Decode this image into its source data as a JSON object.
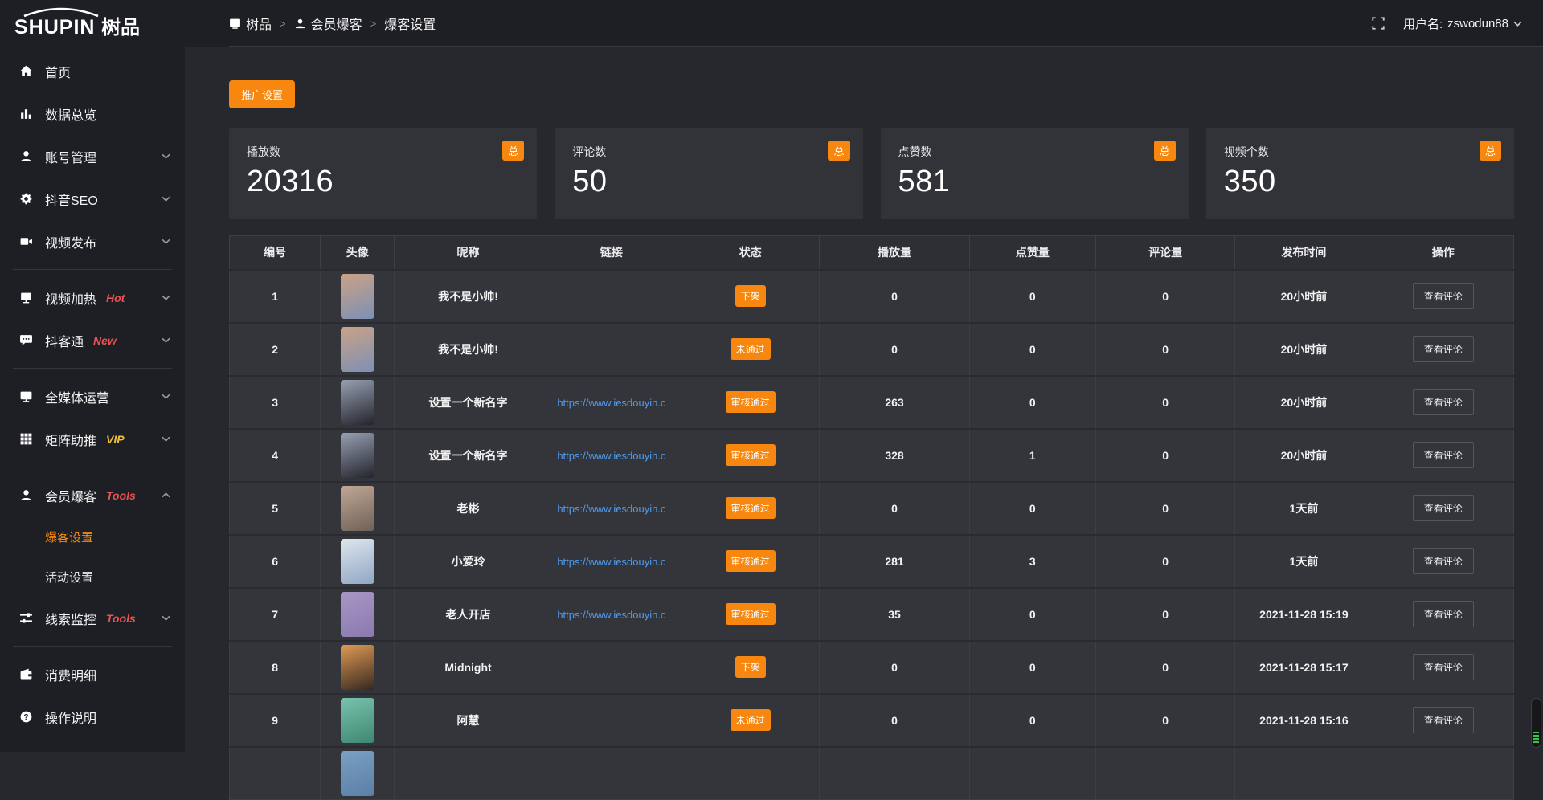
{
  "logo": {
    "brand": "SHUPIN",
    "brand_cn": "树品"
  },
  "topbar": {
    "breadcrumb": [
      {
        "key": "shupin",
        "icon": "screen",
        "label": "树品"
      },
      {
        "key": "member-baoke",
        "icon": "person",
        "label": "会员爆客"
      },
      {
        "key": "baoke-settings",
        "icon": "",
        "label": "爆客设置"
      }
    ],
    "separator": ">",
    "username_label": "用户名:",
    "username": "zswodun88"
  },
  "sidebar": {
    "items": [
      {
        "key": "home",
        "icon": "home",
        "label": "首页"
      },
      {
        "key": "data-overview",
        "icon": "bar-chart",
        "label": "数据总览"
      },
      {
        "key": "account-management",
        "icon": "user",
        "label": "账号管理",
        "chevron": "down"
      },
      {
        "key": "douyin-seo",
        "icon": "gear",
        "label": "抖音SEO",
        "chevron": "down"
      },
      {
        "key": "video-publish",
        "icon": "video",
        "label": "视频发布",
        "chevron": "down",
        "divider_after": true
      },
      {
        "key": "video-heating",
        "icon": "display",
        "label": "视频加热",
        "badge": "Hot",
        "badge_color": "#e85252",
        "chevron": "down"
      },
      {
        "key": "doukotong",
        "icon": "chat",
        "label": "抖客通",
        "badge": "New",
        "badge_color": "#e85252",
        "chevron": "down",
        "divider_after": true
      },
      {
        "key": "all-media-operation",
        "icon": "monitor",
        "label": "全媒体运营",
        "chevron": "down"
      },
      {
        "key": "matrix-boost",
        "icon": "grid",
        "label": "矩阵助推",
        "badge": "VIP",
        "badge_color": "#f2c037",
        "chevron": "down",
        "divider_after": true
      },
      {
        "key": "member-baoke",
        "icon": "person",
        "label": "会员爆客",
        "badge": "Tools",
        "badge_color": "#e85252",
        "chevron": "up",
        "children": [
          {
            "key": "baoke-settings",
            "label": "爆客设置",
            "active": true
          },
          {
            "key": "activity-settings",
            "label": "活动设置"
          }
        ]
      },
      {
        "key": "clue-monitor",
        "icon": "sliders",
        "label": "线索监控",
        "badge": "Tools",
        "badge_color": "#e85252",
        "chevron": "down",
        "divider_after": true
      },
      {
        "key": "consume-detail",
        "icon": "wallet",
        "label": "消费明细"
      },
      {
        "key": "operation-guide",
        "icon": "question",
        "label": "操作说明"
      }
    ]
  },
  "main": {
    "promo_button": "推广设置",
    "stats": [
      {
        "label": "播放数",
        "value": "20316",
        "badge": "总"
      },
      {
        "label": "评论数",
        "value": "50",
        "badge": "总"
      },
      {
        "label": "点赞数",
        "value": "581",
        "badge": "总"
      },
      {
        "label": "视频个数",
        "value": "350",
        "badge": "总"
      }
    ],
    "table": {
      "headers": [
        "编号",
        "头像",
        "昵称",
        "链接",
        "状态",
        "播放量",
        "点赞量",
        "评论量",
        "发布时间",
        "操作"
      ],
      "rows": [
        {
          "id": "1",
          "avatar_colors": [
            "#caa287",
            "#7d90b4"
          ],
          "nickname": "我不是小帅!",
          "link": "",
          "status": "下架",
          "plays": "0",
          "likes": "0",
          "comments": "0",
          "time": "20小时前",
          "action": "查看评论"
        },
        {
          "id": "2",
          "avatar_colors": [
            "#caa287",
            "#7d90b4"
          ],
          "nickname": "我不是小帅!",
          "link": "",
          "status": "未通过",
          "plays": "0",
          "likes": "0",
          "comments": "0",
          "time": "20小时前",
          "action": "查看评论"
        },
        {
          "id": "3",
          "avatar_colors": [
            "#97a0b2",
            "#23242c"
          ],
          "nickname": "设置一个新名字",
          "link": "https://www.iesdouyin.c",
          "status": "审核通过",
          "plays": "263",
          "likes": "0",
          "comments": "0",
          "time": "20小时前",
          "action": "查看评论"
        },
        {
          "id": "4",
          "avatar_colors": [
            "#97a0b2",
            "#23242c"
          ],
          "nickname": "设置一个新名字",
          "link": "https://www.iesdouyin.c",
          "status": "审核通过",
          "plays": "328",
          "likes": "1",
          "comments": "0",
          "time": "20小时前",
          "action": "查看评论"
        },
        {
          "id": "5",
          "avatar_colors": [
            "#c0a795",
            "#6f6158"
          ],
          "nickname": "老彬",
          "link": "https://www.iesdouyin.c",
          "status": "审核通过",
          "plays": "0",
          "likes": "0",
          "comments": "0",
          "time": "1天前",
          "action": "查看评论"
        },
        {
          "id": "6",
          "avatar_colors": [
            "#dde6ee",
            "#8fa6c2"
          ],
          "nickname": "小爱玲",
          "link": "https://www.iesdouyin.c",
          "status": "审核通过",
          "plays": "281",
          "likes": "3",
          "comments": "0",
          "time": "1天前",
          "action": "查看评论"
        },
        {
          "id": "7",
          "avatar_colors": [
            "#a796c5",
            "#8b7aae"
          ],
          "nickname": "老人开店",
          "link": "https://www.iesdouyin.c",
          "status": "审核通过",
          "plays": "35",
          "likes": "0",
          "comments": "0",
          "time": "2021-11-28 15:19",
          "action": "查看评论"
        },
        {
          "id": "8",
          "avatar_colors": [
            "#e09a55",
            "#35281f"
          ],
          "nickname": "Midnight",
          "link": "",
          "status": "下架",
          "plays": "0",
          "likes": "0",
          "comments": "0",
          "time": "2021-11-28 15:17",
          "action": "查看评论"
        },
        {
          "id": "9",
          "avatar_colors": [
            "#79c2ad",
            "#3e8872"
          ],
          "nickname": "阿慧",
          "link": "",
          "status": "未通过",
          "plays": "0",
          "likes": "0",
          "comments": "0",
          "time": "2021-11-28 15:16",
          "action": "查看评论"
        },
        {
          "id": "",
          "avatar_colors": [
            "#7aa0c4",
            "#5b7fa6"
          ],
          "nickname": "",
          "link": "",
          "status": "",
          "plays": "",
          "likes": "",
          "comments": "",
          "time": "",
          "action": ""
        }
      ]
    }
  },
  "colors": {
    "accent_orange": "#f7870e",
    "hot_red": "#e85252",
    "vip_yellow": "#f2c037",
    "link_blue": "#4f9cf0"
  }
}
